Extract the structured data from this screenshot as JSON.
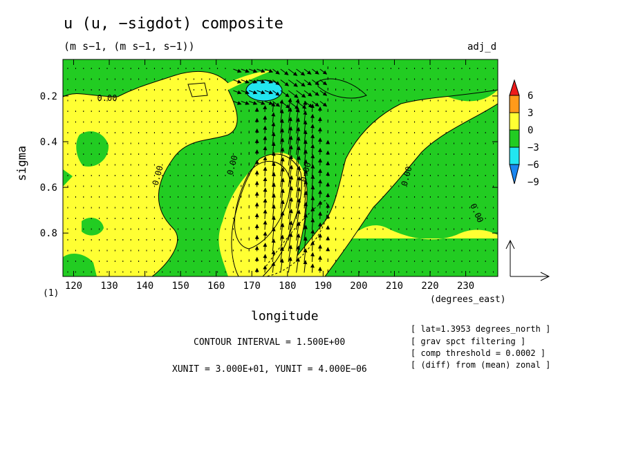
{
  "chart_data": {
    "type": "heatmap",
    "title": "u (u, −sigdot) composite",
    "subtitle": "(m s−1, (m s−1, s−1))",
    "tag": "adj_d",
    "xlabel": "longitude",
    "x_units": "(degrees_east)",
    "ylabel": "sigma",
    "y_marker": "(1)",
    "x_ticks": [
      "120",
      "130",
      "140",
      "150",
      "160",
      "170",
      "180",
      "190",
      "200",
      "210",
      "220",
      "230"
    ],
    "y_ticks": [
      "0.2",
      "0.4",
      "0.6",
      "0.8"
    ],
    "xlim": [
      117,
      239
    ],
    "ylim": [
      0.04,
      0.99
    ],
    "contour_labels": [
      "0.00",
      "0.00",
      "0.00",
      "0.00",
      "0.00",
      "0.00"
    ],
    "colorbar": {
      "labels": [
        "6",
        "3",
        "0",
        "−3",
        "−6",
        "−9"
      ],
      "colors": [
        "#ee1a1a",
        "#ff9a1a",
        "#ffff33",
        "#22cc22",
        "#22e6f0",
        "#1a86f0"
      ]
    },
    "contour_interval": "CONTOUR INTERVAL = 1.500E+00",
    "vector_units": "XUNIT = 3.000E+01, YUNIT = 4.000E−06",
    "notes": [
      "[ lat=1.3953 degrees_north ]",
      "[ grav spct filtering ]",
      "[ comp threshold = 0.0002 ]",
      "[ (diff) from (mean) zonal ]"
    ]
  }
}
